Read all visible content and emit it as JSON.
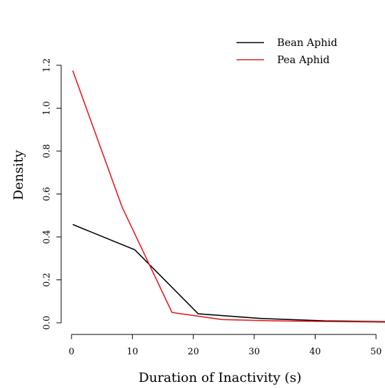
{
  "chart_data": {
    "type": "line",
    "title": "",
    "xlabel": "Duration of Inactivity (s)",
    "ylabel": "Density",
    "xlim": [
      0,
      51
    ],
    "ylim": [
      0,
      1.2
    ],
    "x_ticks": [
      0,
      10,
      20,
      30,
      40,
      50
    ],
    "y_ticks": [
      0.0,
      0.2,
      0.4,
      0.6,
      0.8,
      1.0,
      1.2
    ],
    "x_tick_labels": [
      "0",
      "10",
      "20",
      "30",
      "40",
      "50"
    ],
    "y_tick_labels": [
      "0.0",
      "0.2",
      "0.4",
      "0.6",
      "0.8",
      "1.0",
      "1.2"
    ],
    "grid": false,
    "legend_position": "top-right",
    "series": [
      {
        "name": "Bean Aphid",
        "color": "#000000",
        "x": [
          0.2,
          10.4,
          20.8,
          31.2,
          41.6,
          52
        ],
        "y": [
          0.458,
          0.34,
          0.042,
          0.02,
          0.009,
          0.005
        ]
      },
      {
        "name": "Pea Aphid",
        "color": "#e41a1c",
        "x": [
          0.2,
          8.3,
          16.5,
          24.7,
          32.9,
          41.1,
          49.3,
          52
        ],
        "y": [
          1.175,
          0.54,
          0.048,
          0.015,
          0.009,
          0.006,
          0.004,
          0.003
        ]
      }
    ]
  }
}
